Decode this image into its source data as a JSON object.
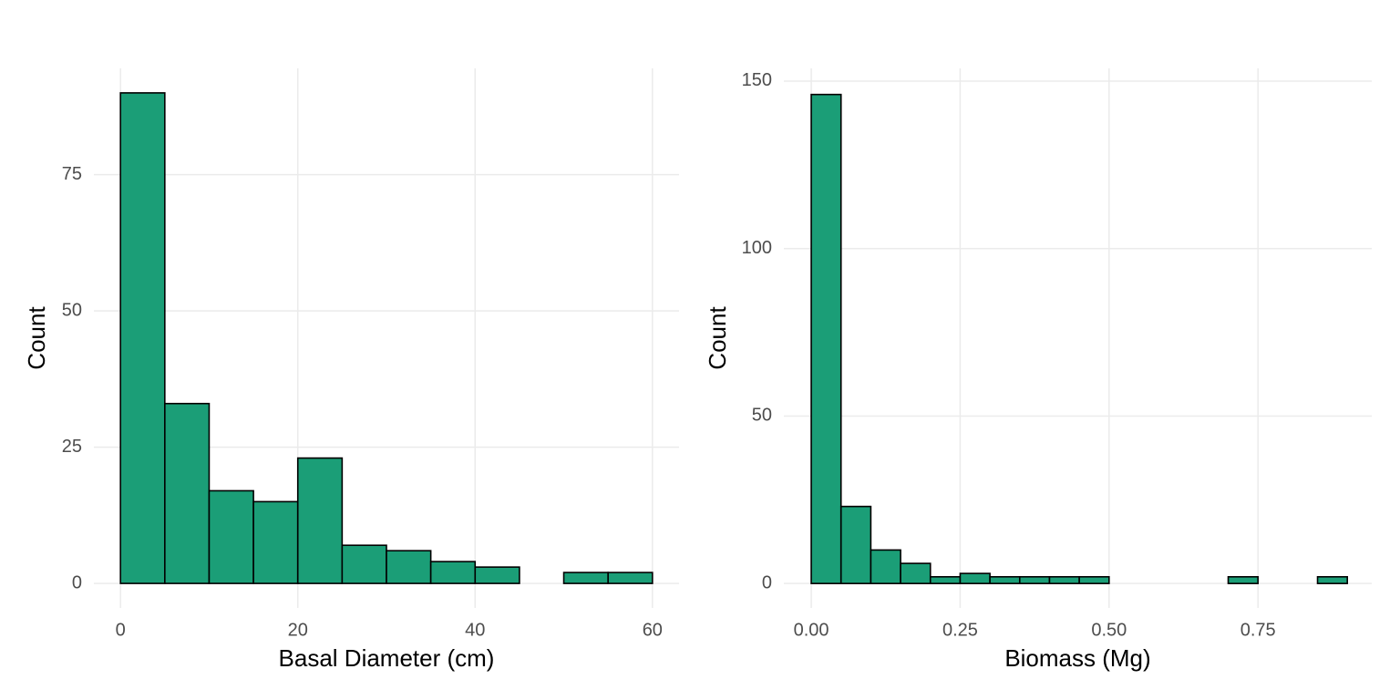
{
  "chart_data": [
    {
      "type": "histogram",
      "xlabel": "Basal Diameter (cm)",
      "ylabel": "Count",
      "color": "#1b9e77",
      "edgecolor": "#000000",
      "bins": [
        0,
        5,
        10,
        15,
        20,
        25,
        30,
        35,
        40,
        45,
        50,
        55,
        60
      ],
      "counts": [
        90,
        33,
        17,
        15,
        23,
        7,
        6,
        4,
        3,
        0,
        2,
        2
      ],
      "xlim": [
        -3,
        63
      ],
      "ylim": [
        -4.5,
        94.5
      ],
      "xticks": [
        0,
        20,
        40,
        60
      ],
      "yticks": [
        0,
        25,
        50,
        75
      ],
      "grid": true
    },
    {
      "type": "histogram",
      "xlabel": "Biomass (Mg)",
      "ylabel": "Count",
      "color": "#1b9e77",
      "edgecolor": "#000000",
      "bins": [
        0,
        0.05,
        0.1,
        0.15,
        0.2,
        0.25,
        0.3,
        0.35,
        0.4,
        0.45,
        0.5,
        0.55,
        0.6,
        0.65,
        0.7,
        0.75,
        0.8,
        0.85,
        0.9
      ],
      "counts": [
        146,
        23,
        10,
        6,
        2,
        3,
        2,
        2,
        2,
        2,
        0,
        0,
        0,
        0,
        2,
        0,
        0,
        2
      ],
      "xlim": [
        -0.046,
        0.941
      ],
      "ylim": [
        -7.3,
        153.8
      ],
      "xticks": [
        {
          "value": 0,
          "label": "0.00"
        },
        {
          "value": 0.25,
          "label": "0.25"
        },
        {
          "value": 0.5,
          "label": "0.50"
        },
        {
          "value": 0.75,
          "label": "0.75"
        }
      ],
      "yticks": [
        0,
        50,
        100,
        150
      ],
      "grid": true
    }
  ]
}
